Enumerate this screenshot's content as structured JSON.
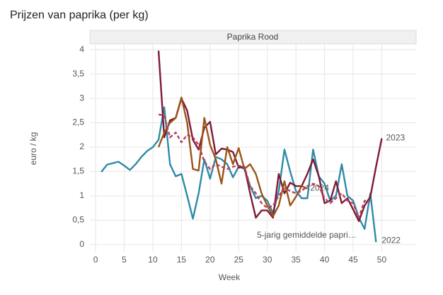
{
  "chart_data": {
    "type": "line",
    "title": "Prijzen van paprika (per kg)",
    "panel_title": "Paprika Rood",
    "x_label": "Week",
    "y_label": "euro / kg",
    "xlim": [
      -1,
      56
    ],
    "ylim": [
      -0.15,
      4.12
    ],
    "xticks": [
      0,
      5,
      10,
      15,
      20,
      25,
      30,
      35,
      40,
      45,
      50
    ],
    "yticks": [
      0,
      {
        "value": 0.5,
        "label": "0,5"
      },
      1,
      {
        "value": 1.5,
        "label": "1,5"
      },
      2,
      {
        "value": 2.5,
        "label": "2,5"
      },
      3,
      {
        "value": 3.5,
        "label": "3,5"
      },
      4
    ],
    "grid": true,
    "series": [
      {
        "name": "2022",
        "color": "#2e8aa8",
        "dashed": false,
        "x": [
          1,
          2,
          3,
          4,
          5,
          6,
          7,
          8,
          9,
          10,
          11,
          12,
          13,
          14,
          15,
          16,
          17,
          18,
          19,
          20,
          21,
          22,
          23,
          24,
          25,
          26,
          27,
          28,
          29,
          30,
          31,
          32,
          33,
          34,
          35,
          36,
          37,
          38,
          39,
          40,
          41,
          42,
          43,
          44,
          45,
          46,
          47,
          48,
          49
        ],
        "values": [
          1.49,
          1.64,
          1.67,
          1.7,
          1.62,
          1.53,
          1.65,
          1.8,
          1.92,
          2.0,
          2.15,
          2.82,
          1.65,
          1.4,
          1.45,
          1.0,
          0.53,
          1.05,
          1.75,
          1.35,
          1.8,
          1.75,
          1.65,
          1.38,
          1.6,
          1.55,
          1.2,
          0.95,
          1.0,
          0.9,
          0.65,
          1.1,
          1.95,
          1.5,
          1.1,
          0.95,
          0.95,
          1.95,
          1.4,
          1.25,
          0.9,
          1.0,
          1.65,
          1.0,
          0.9,
          0.55,
          0.32,
          1.05,
          0.05
        ]
      },
      {
        "name": "2023",
        "color": "#7d1a35",
        "dashed": false,
        "x": [
          11,
          12,
          13,
          14,
          15,
          16,
          17,
          18,
          19,
          20,
          21,
          22,
          23,
          24,
          25,
          26,
          27,
          28,
          29,
          30,
          31,
          32,
          33,
          34,
          35,
          36,
          37,
          38,
          39,
          40,
          41,
          42,
          43,
          44,
          45,
          46,
          47,
          48,
          49,
          50
        ],
        "values": [
          3.98,
          2.2,
          2.55,
          2.6,
          3.0,
          2.75,
          2.15,
          1.95,
          2.4,
          2.52,
          1.85,
          1.97,
          1.95,
          1.9,
          1.58,
          1.6,
          1.05,
          0.55,
          0.7,
          0.7,
          0.55,
          1.45,
          1.05,
          1.27,
          1.2,
          1.2,
          1.45,
          1.75,
          1.4,
          0.85,
          0.9,
          1.3,
          0.85,
          0.95,
          0.72,
          0.48,
          0.8,
          0.98,
          1.6,
          2.18
        ]
      },
      {
        "name": "2024",
        "color": "#9a5418",
        "dashed": false,
        "x": [
          11,
          12,
          13,
          14,
          15,
          16,
          17,
          18,
          19,
          20,
          21,
          22,
          23,
          24,
          25,
          26,
          27,
          28,
          29,
          30,
          31,
          32,
          33,
          34,
          35,
          36,
          37
        ],
        "values": [
          2.0,
          2.3,
          2.5,
          2.6,
          3.02,
          2.5,
          1.55,
          1.52,
          2.6,
          2.05,
          1.75,
          1.25,
          2.0,
          1.65,
          1.98,
          1.55,
          1.65,
          1.45,
          1.05,
          0.8,
          0.58,
          0.8,
          1.3,
          0.8,
          0.98,
          1.2,
          1.15
        ]
      },
      {
        "name": "5-jarig gemiddelde papri…",
        "color": "#b8415e",
        "dashed": true,
        "x": [
          11,
          12,
          13,
          14,
          15,
          16,
          17,
          18,
          19,
          20,
          21,
          22,
          23,
          24,
          25,
          26,
          27,
          28,
          29,
          30,
          31,
          32,
          33,
          34,
          35,
          36,
          37,
          38,
          39,
          40,
          41,
          42,
          43,
          44,
          45,
          46,
          47,
          48
        ],
        "values": [
          2.67,
          2.65,
          2.2,
          2.3,
          2.1,
          2.25,
          2.2,
          2.05,
          1.7,
          1.55,
          1.65,
          1.6,
          1.55,
          1.6,
          1.62,
          1.6,
          1.2,
          1.05,
          0.85,
          0.75,
          0.8,
          1.0,
          1.15,
          1.1,
          1.05,
          1.1,
          1.2,
          1.25,
          1.2,
          0.95,
          0.85,
          0.95,
          1.05,
          0.9,
          0.85,
          0.55,
          0.9,
          0.9
        ]
      }
    ]
  }
}
